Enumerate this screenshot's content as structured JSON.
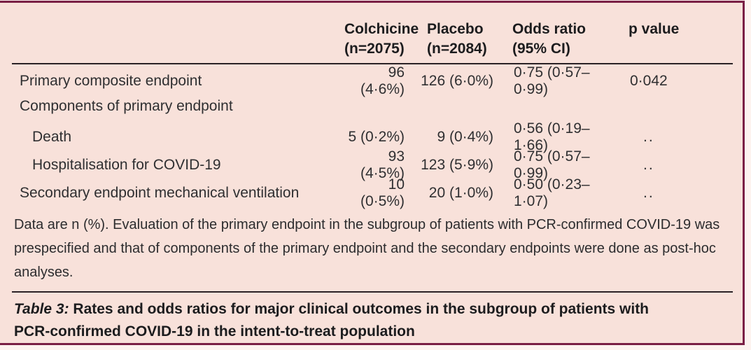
{
  "colors": {
    "panel_background": "#f8e1da",
    "frame_border": "#7a1f45",
    "rule": "#2b2226",
    "text": "#2f2f31"
  },
  "table": {
    "columns": [
      {
        "line1": "Colchicine",
        "line2": "(n=2075)"
      },
      {
        "line1": "Placebo",
        "line2": "(n=2084)"
      },
      {
        "line1": "Odds ratio",
        "line2": "(95% CI)"
      },
      {
        "line1": "p value",
        "line2": ""
      }
    ],
    "rows": [
      {
        "label": "Primary composite endpoint",
        "colchicine": "96 (4·6%)",
        "placebo": "126 (6·0%)",
        "odds_ratio": "0·75 (0·57–0·99)",
        "p_value": "0·042"
      },
      {
        "label": "Components of primary endpoint",
        "colchicine": "",
        "placebo": "",
        "odds_ratio": "",
        "p_value": ""
      },
      {
        "label": "Death",
        "colchicine": "5 (0·2%)",
        "placebo": "9 (0·4%)",
        "odds_ratio": "0·56 (0·19–1·66)",
        "p_value": ".."
      },
      {
        "label": "Hospitalisation for COVID-19",
        "colchicine": "93 (4·5%)",
        "placebo": "123 (5·9%)",
        "odds_ratio": "0·75 (0·57–0·99)",
        "p_value": ".."
      },
      {
        "label": "Secondary endpoint mechanical ventilation",
        "colchicine": "10 (0·5%)",
        "placebo": "20 (1·0%)",
        "odds_ratio": "0·50 (0·23–1·07)",
        "p_value": ".."
      }
    ],
    "footnote_lines": [
      "Data are n (%). Evaluation of the primary endpoint in the subgroup of patients with PCR-confirmed COVID-19 was",
      "prespecified and that of components of the primary endpoint and the secondary endpoints were done as post-hoc",
      "analyses."
    ],
    "caption": {
      "prefix": "Table 3:",
      "line1_rest": " Rates and odds ratios for major clinical outcomes in the subgroup of patients with",
      "line2": "PCR-confirmed COVID-19 in the intent-to-treat population"
    }
  }
}
